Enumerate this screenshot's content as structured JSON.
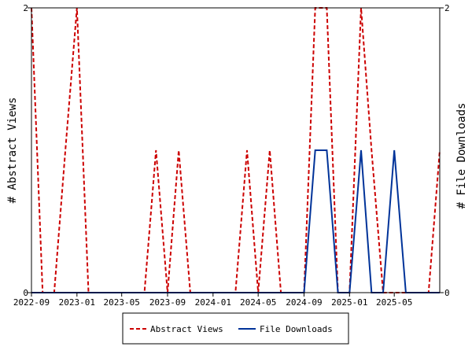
{
  "chart_data": {
    "type": "line",
    "title": "",
    "xlabel": "",
    "ylabel_left": "# Abstract Views",
    "ylabel_right": "# File Downloads",
    "x_tick_labels": [
      "2022-09",
      "2023-01",
      "2023-05",
      "2023-09",
      "2024-01",
      "2024-05",
      "2024-09",
      "2025-01",
      "2025-05"
    ],
    "y_tick_labels_left": [
      "0",
      "2"
    ],
    "y_tick_labels_right": [
      "0",
      "2"
    ],
    "ylim": [
      0,
      2
    ],
    "x_range": [
      "2022-09-01",
      "2025-08-31"
    ],
    "legend_position": "bottom-center",
    "grid": false,
    "series": [
      {
        "name": "Abstract Views",
        "color": "#cc0000",
        "style": "dashed",
        "points": [
          [
            "2022-09-01",
            2
          ],
          [
            "2022-10-01",
            0
          ],
          [
            "2022-11-01",
            0
          ],
          [
            "2022-12-01",
            1
          ],
          [
            "2023-01-01",
            2
          ],
          [
            "2023-02-01",
            0
          ],
          [
            "2023-03-01",
            0
          ],
          [
            "2023-04-01",
            0
          ],
          [
            "2023-05-01",
            0
          ],
          [
            "2023-06-01",
            0
          ],
          [
            "2023-07-01",
            0
          ],
          [
            "2023-08-01",
            1
          ],
          [
            "2023-09-01",
            0
          ],
          [
            "2023-10-01",
            1
          ],
          [
            "2023-11-01",
            0
          ],
          [
            "2023-12-01",
            0
          ],
          [
            "2024-01-01",
            0
          ],
          [
            "2024-02-01",
            0
          ],
          [
            "2024-03-01",
            0
          ],
          [
            "2024-04-01",
            1
          ],
          [
            "2024-05-01",
            0
          ],
          [
            "2024-06-01",
            1
          ],
          [
            "2024-07-01",
            0
          ],
          [
            "2024-08-01",
            0
          ],
          [
            "2024-09-01",
            0
          ],
          [
            "2024-10-01",
            2
          ],
          [
            "2024-11-01",
            2
          ],
          [
            "2024-12-01",
            0
          ],
          [
            "2025-01-01",
            0
          ],
          [
            "2025-02-01",
            2
          ],
          [
            "2025-03-01",
            1
          ],
          [
            "2025-04-01",
            0
          ],
          [
            "2025-05-01",
            0
          ],
          [
            "2025-06-01",
            0
          ],
          [
            "2025-07-01",
            0
          ],
          [
            "2025-08-01",
            0
          ],
          [
            "2025-08-31",
            1
          ]
        ]
      },
      {
        "name": "File Downloads",
        "color": "#003399",
        "style": "solid",
        "points": [
          [
            "2022-09-01",
            0
          ],
          [
            "2022-10-01",
            0
          ],
          [
            "2022-11-01",
            0
          ],
          [
            "2022-12-01",
            0
          ],
          [
            "2023-01-01",
            0
          ],
          [
            "2023-02-01",
            0
          ],
          [
            "2023-03-01",
            0
          ],
          [
            "2023-04-01",
            0
          ],
          [
            "2023-05-01",
            0
          ],
          [
            "2023-06-01",
            0
          ],
          [
            "2023-07-01",
            0
          ],
          [
            "2023-08-01",
            0
          ],
          [
            "2023-09-01",
            0
          ],
          [
            "2023-10-01",
            0
          ],
          [
            "2023-11-01",
            0
          ],
          [
            "2023-12-01",
            0
          ],
          [
            "2024-01-01",
            0
          ],
          [
            "2024-02-01",
            0
          ],
          [
            "2024-03-01",
            0
          ],
          [
            "2024-04-01",
            0
          ],
          [
            "2024-05-01",
            0
          ],
          [
            "2024-06-01",
            0
          ],
          [
            "2024-07-01",
            0
          ],
          [
            "2024-08-01",
            0
          ],
          [
            "2024-09-01",
            0
          ],
          [
            "2024-10-01",
            1
          ],
          [
            "2024-11-01",
            1
          ],
          [
            "2024-12-01",
            0
          ],
          [
            "2025-01-01",
            0
          ],
          [
            "2025-02-01",
            1
          ],
          [
            "2025-03-01",
            0
          ],
          [
            "2025-04-01",
            0
          ],
          [
            "2025-05-01",
            1
          ],
          [
            "2025-06-01",
            0
          ],
          [
            "2025-07-01",
            0
          ],
          [
            "2025-08-01",
            0
          ],
          [
            "2025-08-31",
            0
          ]
        ]
      }
    ]
  }
}
